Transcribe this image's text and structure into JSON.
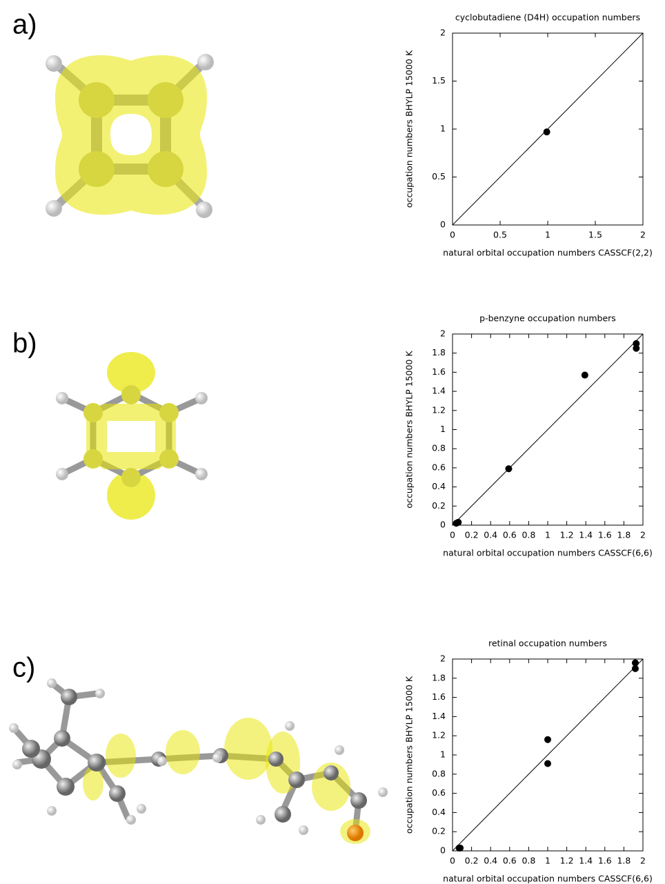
{
  "chart_data": [
    {
      "type": "scatter",
      "label": "a)",
      "title": "cyclobutadiene (D4H) occupation numbers",
      "xlabel": "natural orbital occupation numbers CASSCF(2,2)",
      "ylabel": "occupation numbers BHYLP 15000 K",
      "xlim": [
        0,
        2
      ],
      "ylim": [
        0,
        2
      ],
      "xticks": [
        0,
        0.5,
        1,
        1.5,
        2
      ],
      "yticks": [
        0,
        0.5,
        1,
        1.5,
        2
      ],
      "series": [
        {
          "style": "line",
          "color": "#000000",
          "x": [
            0,
            2
          ],
          "values": [
            0,
            2
          ]
        },
        {
          "style": "points",
          "color": "#000000",
          "x": [
            0.99
          ],
          "values": [
            0.97
          ]
        }
      ]
    },
    {
      "type": "scatter",
      "label": "b)",
      "title": "p-benzyne occupation numbers",
      "xlabel": "natural orbital occupation numbers CASSCF(6,6)",
      "ylabel": "occupation numbers BHYLP 15000 K",
      "xlim": [
        0,
        2
      ],
      "ylim": [
        0,
        2
      ],
      "xticks": [
        0,
        0.2,
        0.4,
        0.6,
        0.8,
        1,
        1.2,
        1.4,
        1.6,
        1.8,
        2
      ],
      "yticks": [
        0,
        0.2,
        0.4,
        0.6,
        0.8,
        1,
        1.2,
        1.4,
        1.6,
        1.8,
        2
      ],
      "series": [
        {
          "style": "line",
          "color": "#000000",
          "x": [
            0,
            2
          ],
          "values": [
            0,
            2
          ]
        },
        {
          "style": "points",
          "color": "#000000",
          "x": [
            0.04,
            0.06,
            0.59,
            1.39,
            1.93,
            1.93
          ],
          "values": [
            0.02,
            0.03,
            0.59,
            1.57,
            1.9,
            1.85
          ]
        }
      ]
    },
    {
      "type": "scatter",
      "label": "c)",
      "title": "retinal occupation numbers",
      "xlabel": "natural orbital occupation numbers CASSCF(6,6)",
      "ylabel": "occupation numbers BHYLP 15000 K",
      "xlim": [
        0,
        2
      ],
      "ylim": [
        0,
        2
      ],
      "xticks": [
        0,
        0.2,
        0.4,
        0.6,
        0.8,
        1,
        1.2,
        1.4,
        1.6,
        1.8,
        2
      ],
      "yticks": [
        0,
        0.2,
        0.4,
        0.6,
        0.8,
        1,
        1.2,
        1.4,
        1.6,
        1.8,
        2
      ],
      "series": [
        {
          "style": "line",
          "color": "#000000",
          "x": [
            0,
            2
          ],
          "values": [
            0,
            2
          ]
        },
        {
          "style": "points",
          "color": "#000000",
          "x": [
            0.07,
            0.08,
            1.0,
            1.0,
            1.92,
            1.92
          ],
          "values": [
            0.03,
            0.03,
            1.16,
            0.91,
            1.96,
            1.9
          ]
        }
      ]
    }
  ]
}
